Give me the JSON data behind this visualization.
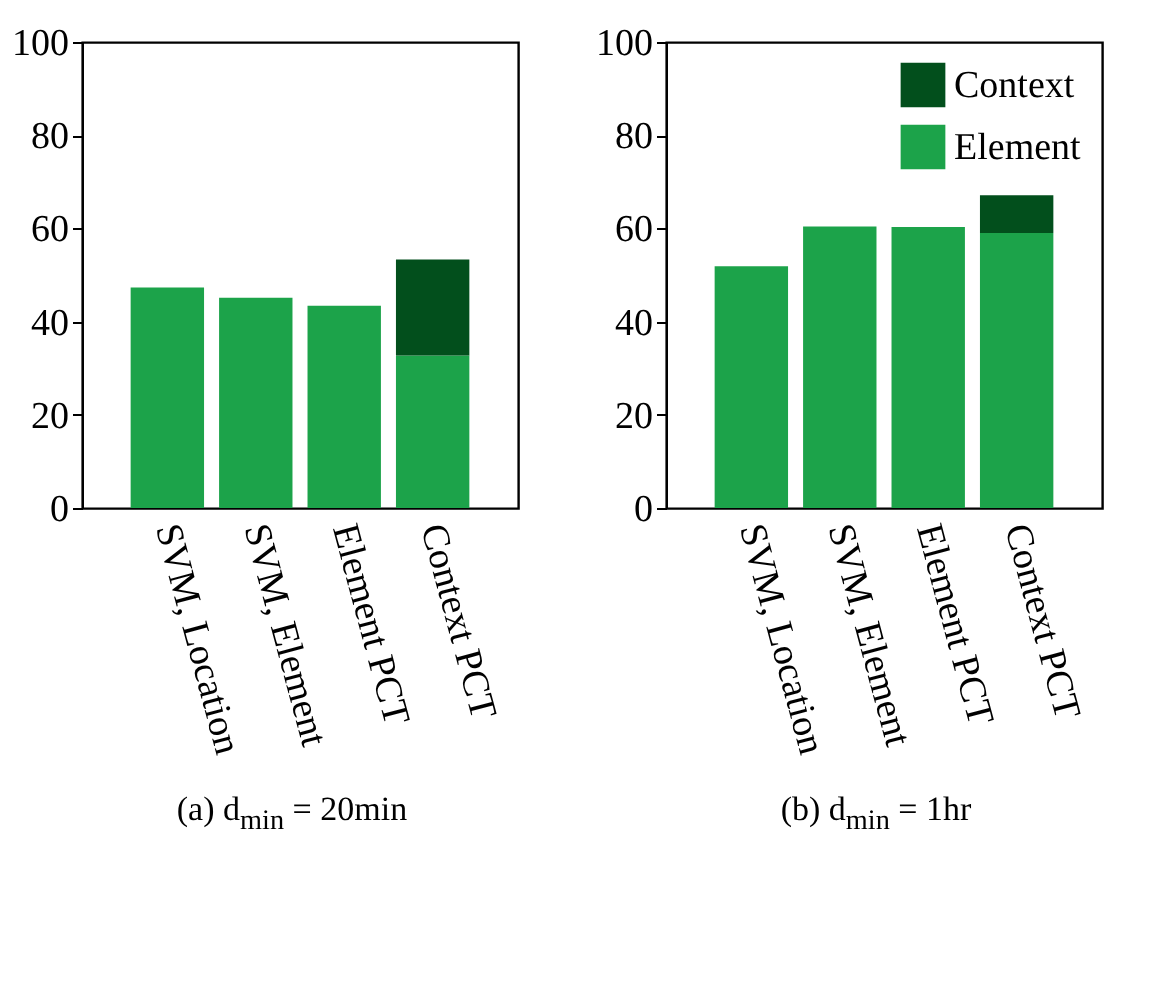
{
  "chart_data": [
    {
      "type": "bar",
      "stacked": true,
      "title": "(a) d$_{min}$ = 20min",
      "categories": [
        "SVM, Location",
        "SVM, Element",
        "Element PCT",
        "Context PCT"
      ],
      "series": [
        {
          "color": "#1ca34a",
          "values": [
            47.3,
            45.1,
            43.4,
            32.7
          ]
        },
        {
          "color": "#024f1c",
          "values": [
            null,
            null,
            null,
            20.6
          ]
        }
      ],
      "ylim": [
        0,
        100
      ],
      "yticks": [
        0,
        20,
        40,
        60,
        80,
        100
      ],
      "legend": false
    },
    {
      "type": "bar",
      "stacked": true,
      "title": "(b) d$_{min}$ = 1hr",
      "categories": [
        "SVM, Location",
        "SVM, Element",
        "Element PCT",
        "Context PCT"
      ],
      "series": [
        {
          "name": "Element",
          "color": "#1ca34a",
          "values": [
            51.9,
            60.4,
            60.3,
            59.0
          ]
        },
        {
          "name": "Context",
          "color": "#024f1c",
          "values": [
            null,
            null,
            null,
            8.1
          ]
        }
      ],
      "ylim": [
        0,
        100
      ],
      "yticks": [
        0,
        20,
        40,
        60,
        80,
        100
      ],
      "legend": "top right"
    }
  ]
}
